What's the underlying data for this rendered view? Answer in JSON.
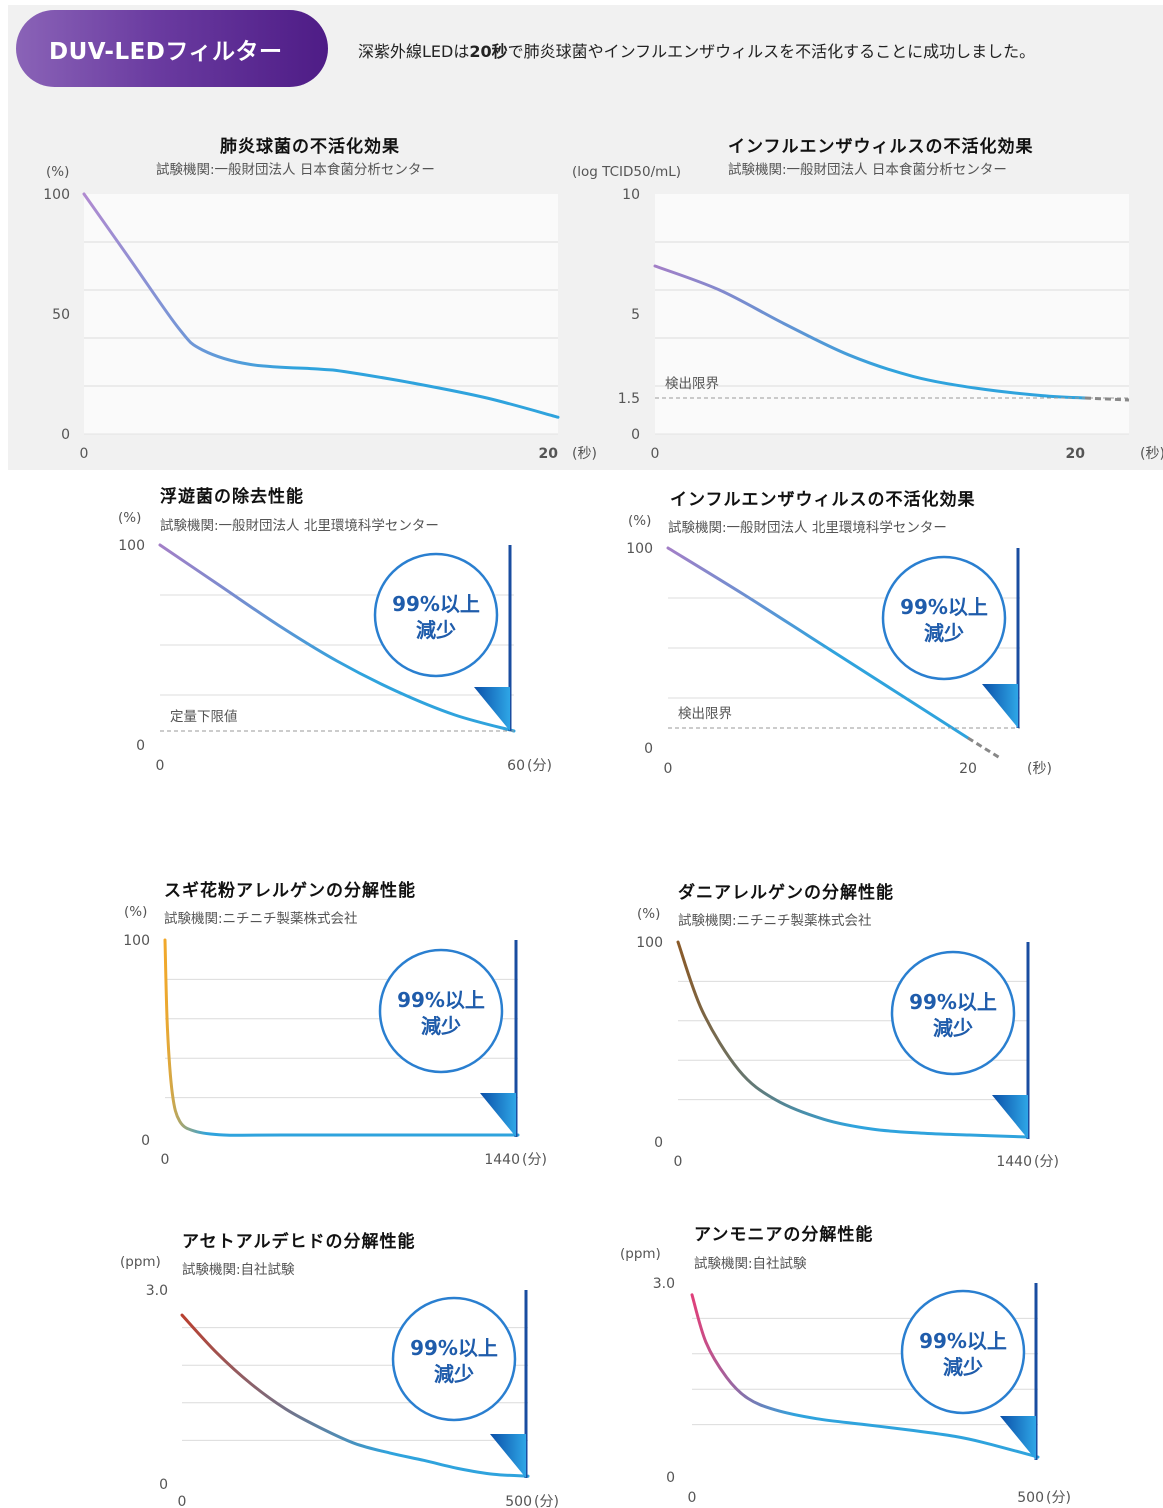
{
  "header": {
    "badge": "DUV-LEDフィルター",
    "intro_pre": "深紫外線LEDは",
    "intro_bold": "20秒",
    "intro_post": "で肺炎球菌やインフルエンザウィルスを不活化することに成功しました。"
  },
  "badge_text": "99%以上 減少",
  "badge_line1": "99%以上",
  "badge_line2": "減少",
  "colors": {
    "purple": "#a37fc7",
    "blue": "#2fa3dd",
    "arrow": "#1a4da0",
    "badge_text": "#1f5cab"
  },
  "chart_data": [
    {
      "type": "line",
      "title": "肺炎球菌の不活化効果",
      "subtitle": "試験機関:一般財団法人 日本食菌分析センター",
      "ylabel": "(%)",
      "xunit": "(秒)",
      "yticks": [
        "100",
        "50",
        "0"
      ],
      "xticks": [
        "0",
        "20"
      ],
      "ylim": [
        0,
        100
      ],
      "xlim": [
        0,
        20
      ],
      "x": [
        0,
        2,
        4,
        5,
        7,
        10,
        11,
        14,
        17,
        20
      ],
      "y": [
        100,
        72,
        44,
        35,
        29,
        27,
        26,
        21,
        15,
        7
      ]
    },
    {
      "type": "line",
      "title": "インフルエンザウィルスの不活化効果",
      "subtitle": "試験機関:一般財団法人 日本食菌分析センター",
      "ylabel": "(log TCID50/mL)",
      "xunit": "(秒)",
      "yticks": [
        "10",
        "5",
        "1.5",
        "0"
      ],
      "xticks": [
        "0",
        "20"
      ],
      "ylim": [
        0,
        10
      ],
      "xlim": [
        0,
        20
      ],
      "x": [
        0,
        3,
        6,
        9,
        12,
        15,
        18,
        20
      ],
      "y": [
        7.0,
        6.0,
        4.6,
        3.3,
        2.4,
        1.9,
        1.6,
        1.5
      ],
      "annotation": "検出限界",
      "limit": 1.5
    },
    {
      "type": "line",
      "title": "浮遊菌の除去性能",
      "subtitle": "試験機関:一般財団法人 北里環境科学センター",
      "ylabel": "(%)",
      "xunit": "(分)",
      "yticks": [
        "100",
        "0"
      ],
      "xticks": [
        "0",
        "60"
      ],
      "ylim": [
        0,
        100
      ],
      "xlim": [
        0,
        60
      ],
      "x": [
        0,
        10,
        20,
        30,
        40,
        50,
        60
      ],
      "y": [
        100,
        80,
        60,
        42,
        27,
        15,
        0.5
      ],
      "annotation": "定量下限値"
    },
    {
      "type": "line",
      "title": "インフルエンザウィルスの不活化効果",
      "subtitle": "試験機関:一般財団法人 北里環境科学センター",
      "ylabel": "(%)",
      "xunit": "(秒)",
      "yticks": [
        "100",
        "0"
      ],
      "xticks": [
        "0",
        "20"
      ],
      "ylim": [
        0,
        100
      ],
      "xlim": [
        0,
        20
      ],
      "x": [
        0,
        5,
        10,
        15,
        20
      ],
      "y": [
        100,
        77,
        53,
        29,
        5
      ],
      "annotation": "検出限界"
    },
    {
      "type": "line",
      "title": "スギ花粉アレルゲンの分解性能",
      "subtitle": "試験機関:ニチニチ製薬株式会社",
      "ylabel": "(%)",
      "xunit": "(分)",
      "yticks": [
        "100",
        "0"
      ],
      "xticks": [
        "0",
        "1440"
      ],
      "ylim": [
        0,
        100
      ],
      "xlim": [
        0,
        1440
      ],
      "x": [
        0,
        10,
        30,
        60,
        120,
        240,
        480,
        1440
      ],
      "y": [
        100,
        55,
        22,
        8,
        3,
        1,
        1,
        1
      ]
    },
    {
      "type": "line",
      "title": "ダニアレルゲンの分解性能",
      "subtitle": "試験機関:ニチニチ製薬株式会社",
      "ylabel": "(%)",
      "xunit": "(分)",
      "yticks": [
        "100",
        "0"
      ],
      "xticks": [
        "0",
        "1440"
      ],
      "ylim": [
        0,
        100
      ],
      "xlim": [
        0,
        1440
      ],
      "x": [
        0,
        100,
        250,
        400,
        600,
        800,
        1000,
        1200,
        1440
      ],
      "y": [
        100,
        65,
        35,
        20,
        10,
        5,
        3,
        2,
        1
      ]
    },
    {
      "type": "line",
      "title": "アセトアルデヒドの分解性能",
      "subtitle": "試験機関:自社試験",
      "ylabel": "(ppm)",
      "xunit": "(分)",
      "yticks": [
        "3.0",
        "0"
      ],
      "xticks": [
        "0",
        "500"
      ],
      "ylim": [
        0,
        3
      ],
      "xlim": [
        0,
        500
      ],
      "x": [
        0,
        50,
        100,
        150,
        200,
        250,
        300,
        350,
        400,
        450,
        500
      ],
      "y": [
        2.6,
        2.0,
        1.5,
        1.1,
        0.8,
        0.55,
        0.4,
        0.28,
        0.15,
        0.06,
        0.03
      ]
    },
    {
      "type": "line",
      "title": "アンモニアの分解性能",
      "subtitle": "試験機関:自社試験",
      "ylabel": "(ppm)",
      "xunit": "(分)",
      "yticks": [
        "3.0",
        "0"
      ],
      "xticks": [
        "0",
        "500"
      ],
      "ylim": [
        0,
        3
      ],
      "xlim": [
        0,
        500
      ],
      "x": [
        0,
        20,
        50,
        80,
        120,
        180,
        250,
        320,
        380,
        420,
        500
      ],
      "y": [
        2.8,
        2.0,
        1.4,
        1.05,
        0.85,
        0.7,
        0.6,
        0.5,
        0.4,
        0.3,
        0.05
      ]
    }
  ]
}
